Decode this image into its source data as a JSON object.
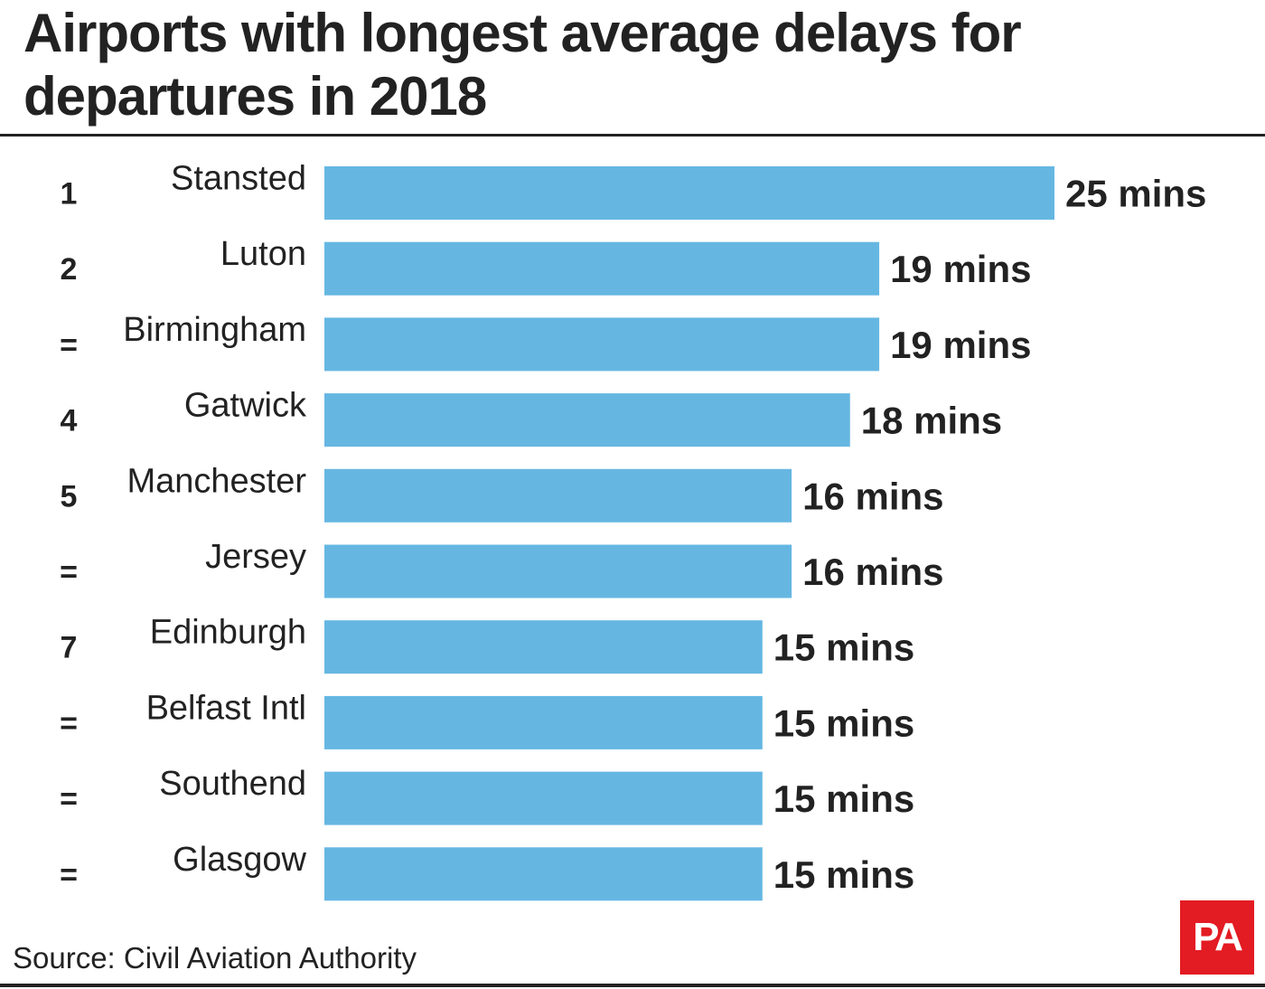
{
  "title": "Airports with longest average delays for departures in 2018",
  "source": "Source: Civil Aviation Authority",
  "logo_text": "PA",
  "colors": {
    "bar": "#65b7e2",
    "text": "#222222",
    "logo_background": "#e31b23"
  },
  "chart_data": {
    "type": "bar",
    "orientation": "horizontal",
    "title": "Airports with longest average delays for departures in 2018",
    "unit": "mins",
    "ranks": [
      "1",
      "2",
      "=",
      "4",
      "5",
      "=",
      "7",
      "=",
      "=",
      "="
    ],
    "categories": [
      "Stansted",
      "Luton",
      "Birmingham",
      "Gatwick",
      "Manchester",
      "Jersey",
      "Edinburgh",
      "Belfast Intl",
      "Southend",
      "Glasgow"
    ],
    "values": [
      25,
      19,
      19,
      18,
      16,
      16,
      15,
      15,
      15,
      15
    ],
    "value_labels": [
      "25 mins",
      "19 mins",
      "19 mins",
      "18 mins",
      "16 mins",
      "16 mins",
      "15 mins",
      "15 mins",
      "15 mins",
      "15 mins"
    ],
    "xlim": [
      0,
      25
    ],
    "grid": false,
    "legend": "none"
  }
}
